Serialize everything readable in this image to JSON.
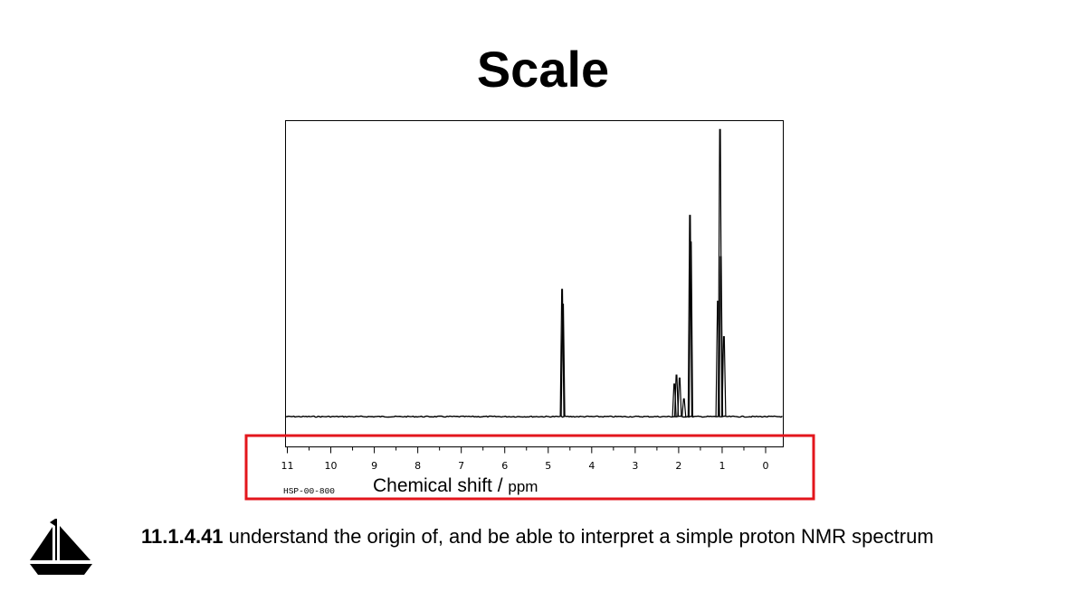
{
  "slide": {
    "title": "Scale",
    "objective_code": "11.1.4.41",
    "objective_text": " understand the origin of, and be able to interpret a simple proton NMR spectrum",
    "icon": "sailboat-icon"
  },
  "chart_data": {
    "type": "line",
    "title": "",
    "xlabel_main": "Chemical shift / ",
    "xlabel_unit": "ppm",
    "spectrum_id": "HSP-00-800",
    "x_reversed": true,
    "xlim": [
      11,
      0
    ],
    "x_ticks": [
      "11",
      "10",
      "9",
      "8",
      "7",
      "6",
      "5",
      "4",
      "3",
      "2",
      "1",
      "0"
    ],
    "ylim": [
      0,
      1
    ],
    "grid": false,
    "highlight_color": "#e3161c",
    "line_color": "#000000",
    "peaks": [
      {
        "shift": 4.68,
        "height": 0.43
      },
      {
        "shift": 4.66,
        "height": 0.38
      },
      {
        "shift": 2.1,
        "height": 0.11
      },
      {
        "shift": 2.05,
        "height": 0.14
      },
      {
        "shift": 1.98,
        "height": 0.13
      },
      {
        "shift": 1.88,
        "height": 0.06
      },
      {
        "shift": 1.74,
        "height": 0.68
      },
      {
        "shift": 1.72,
        "height": 0.59
      },
      {
        "shift": 1.1,
        "height": 0.39
      },
      {
        "shift": 1.05,
        "height": 0.97
      },
      {
        "shift": 1.03,
        "height": 0.54
      },
      {
        "shift": 0.96,
        "height": 0.27
      }
    ]
  }
}
